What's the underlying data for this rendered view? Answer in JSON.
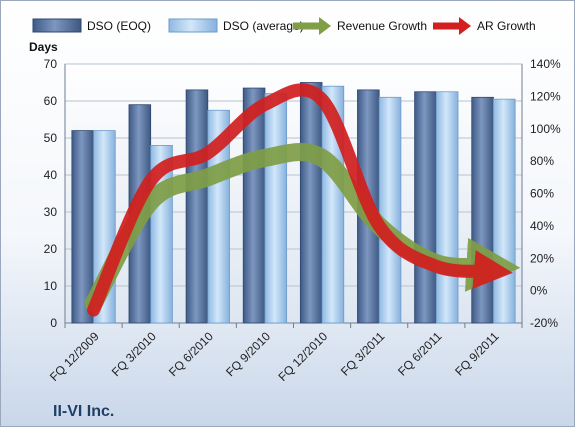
{
  "chart_data": {
    "type": "bar",
    "title": "",
    "company_label": "II-VI Inc.",
    "ylabel": "Days",
    "ylim": [
      0,
      70
    ],
    "yticks": [
      0,
      10,
      20,
      30,
      40,
      50,
      60,
      70
    ],
    "y2lim": [
      -20,
      140
    ],
    "y2ticks": [
      "-20%",
      "0%",
      "20%",
      "40%",
      "60%",
      "80%",
      "100%",
      "120%",
      "140%"
    ],
    "categories": [
      "FQ 12/2009",
      "FQ 3/2010",
      "FQ 6/2010",
      "FQ 9/2010",
      "FQ 12/2010",
      "FQ 3/2011",
      "FQ 6/2011",
      "FQ 9/2011"
    ],
    "bar_series": [
      {
        "name": "DSO (EOQ)",
        "values": [
          52,
          59,
          63,
          63.5,
          65,
          63,
          62.5,
          61
        ],
        "color": "#4f6d9a"
      },
      {
        "name": "DSO (average)",
        "values": [
          52,
          48,
          57.5,
          62,
          64,
          61,
          62.5,
          60.5
        ],
        "color": "#a9cdee"
      }
    ],
    "line_series": [
      {
        "name": "Revenue Growth",
        "values": [
          -8,
          55,
          70,
          82,
          82,
          40,
          17,
          15
        ],
        "color": "#7f9e46"
      },
      {
        "name": "AR Growth",
        "values": [
          -12,
          68,
          85,
          115,
          118,
          40,
          15,
          12
        ],
        "color": "#d21f1f"
      }
    ],
    "grid": true,
    "legend_position": "top"
  }
}
